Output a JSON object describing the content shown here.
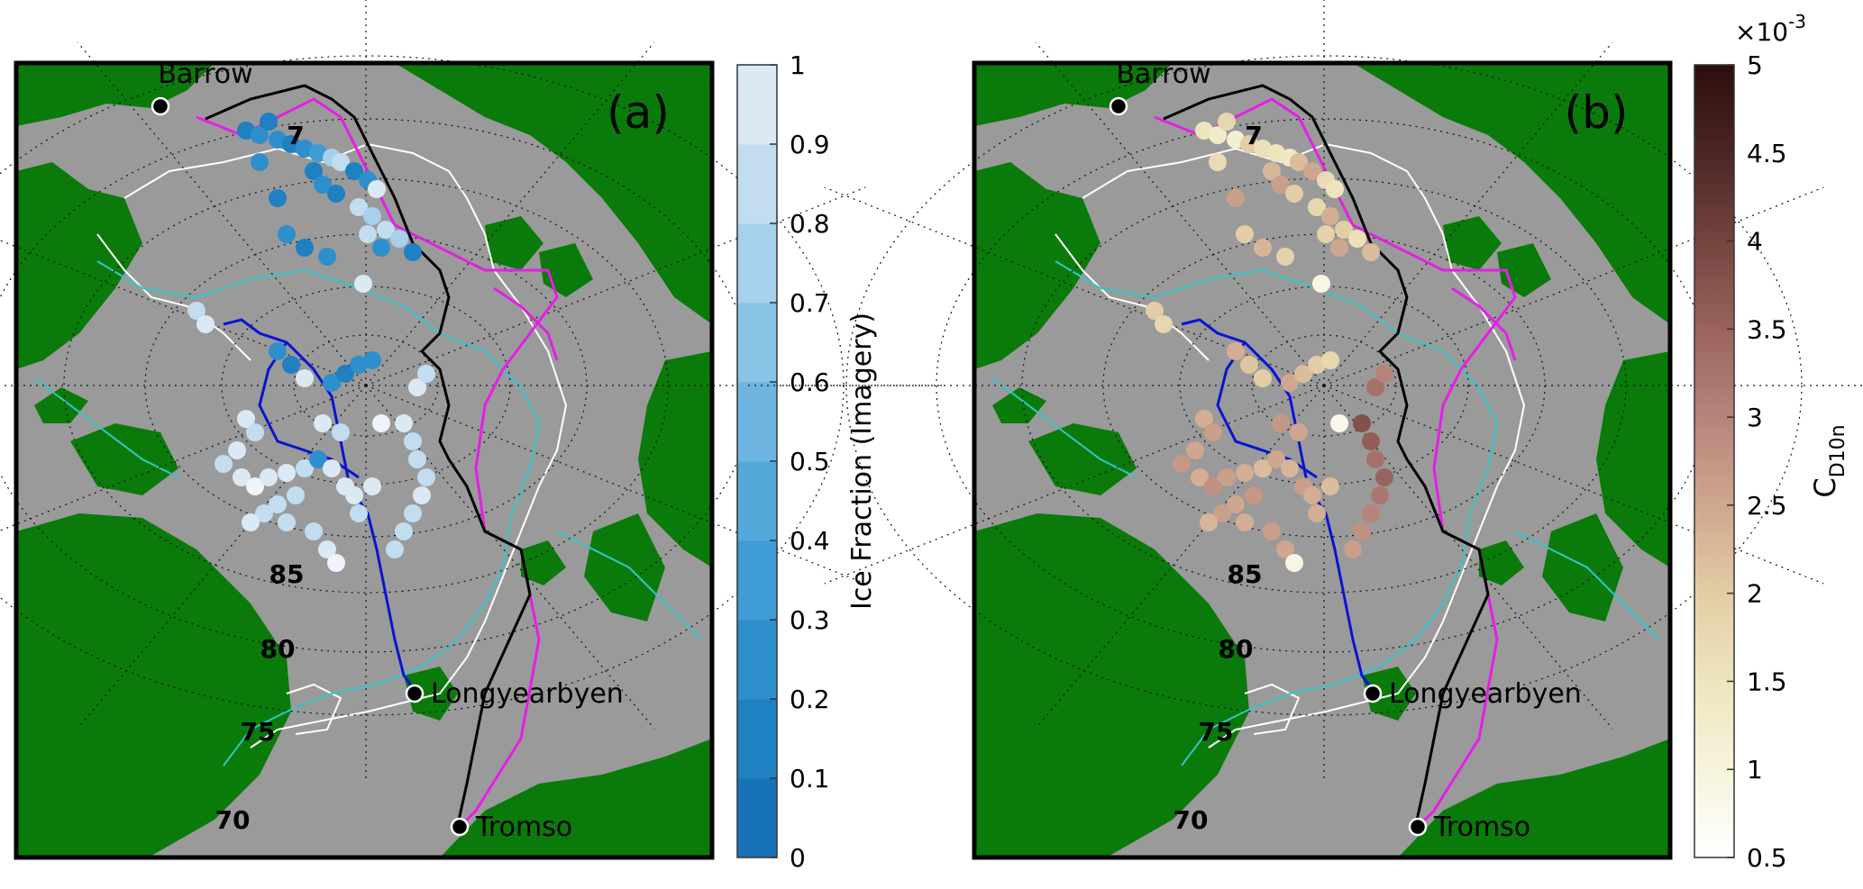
{
  "panels": [
    {
      "id": "a",
      "panel_label": "(a)",
      "colorbar": {
        "label": "Ice Fraction (Imagery)",
        "ticks": [
          "0",
          "0.1",
          "0.2",
          "0.3",
          "0.4",
          "0.5",
          "0.6",
          "0.7",
          "0.8",
          "0.9",
          "1"
        ],
        "range": [
          0,
          1
        ],
        "scale_note": "",
        "colors": [
          "#1872b8",
          "#1f80c2",
          "#2e8fcc",
          "#3f9cd4",
          "#54a9db",
          "#6db5e0",
          "#89c3e6",
          "#a6d0eb",
          "#c2ddf0",
          "#dbe9f5",
          "#eef4fa"
        ]
      }
    },
    {
      "id": "b",
      "panel_label": "(b)",
      "colorbar": {
        "label_main": "C",
        "label_sub": "D10n",
        "ticks": [
          "0.5",
          "1",
          "1.5",
          "2",
          "2.5",
          "3",
          "3.5",
          "4",
          "4.5",
          "5"
        ],
        "range": [
          0.5,
          5
        ],
        "scale_note_base": "×10",
        "scale_note_exp": "-3",
        "gradient": [
          "#ffffff",
          "#f6f4dc",
          "#eee5bd",
          "#e2cda6",
          "#cfa68e",
          "#b7837a",
          "#9a6360",
          "#74443f",
          "#4b2624",
          "#2a0e0d"
        ]
      }
    }
  ],
  "cities": [
    "Barrow",
    "Longyearbyen",
    "Tromso"
  ],
  "latitude_labels": [
    "70",
    "75",
    "80",
    "85",
    "7"
  ],
  "colors": {
    "land": "#0a7a0a",
    "ocean": "#9a9a9a",
    "ice_edge_white": "#ffffff",
    "ice_edge_cyan": "#34c6cc",
    "track_black": "#000000",
    "track_magenta": "#e61ee6",
    "track_blue": "#0a14d2"
  }
}
